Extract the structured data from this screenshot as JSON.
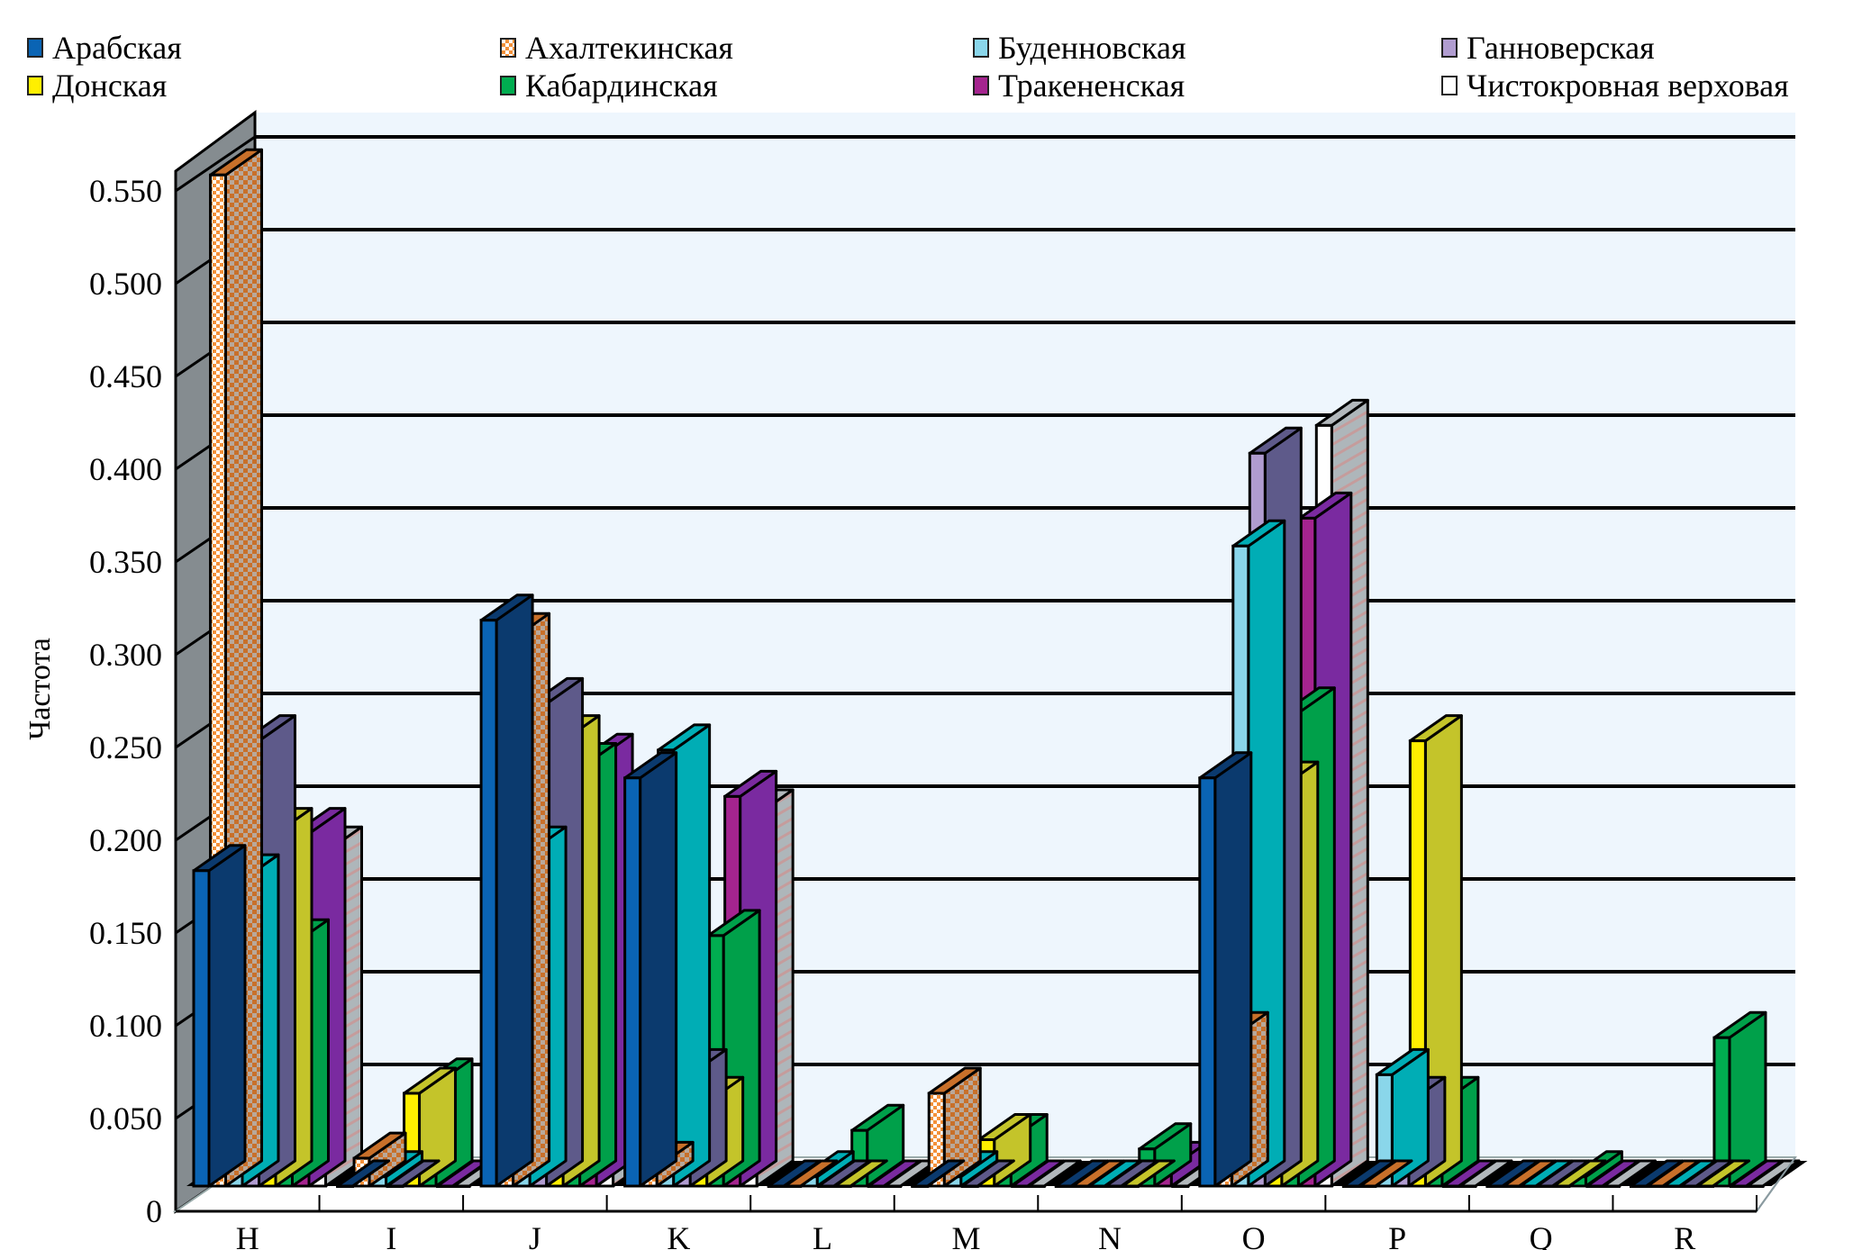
{
  "chart_data": {
    "type": "bar",
    "style": "3d-grouped",
    "title": "",
    "xlabel": "",
    "ylabel": "Частота",
    "ylim": [
      0,
      0.55
    ],
    "yticks": [
      "0",
      "0.050",
      "0.100",
      "0.150",
      "0.200",
      "0.250",
      "0.300",
      "0.350",
      "0.400",
      "0.450",
      "0.500",
      "0.550"
    ],
    "ytick_values": [
      0,
      0.05,
      0.1,
      0.15,
      0.2,
      0.25,
      0.3,
      0.35,
      0.4,
      0.45,
      0.5,
      0.55
    ],
    "grid": true,
    "legend_position": "top",
    "categories": [
      "H",
      "I",
      "J",
      "K",
      "L",
      "M",
      "N",
      "O",
      "P",
      "Q",
      "R"
    ],
    "series": [
      {
        "name": "Арабская",
        "color": "#0a64b4",
        "side": "#0b3a6e",
        "pattern": "solid",
        "values": [
          0.17,
          0.0,
          0.305,
          0.22,
          0.0,
          0.0,
          0.0,
          0.22,
          0.0,
          0.0,
          0.0
        ]
      },
      {
        "name": "Ахалтекинская",
        "color": "#f4913a",
        "side": "#c8702a",
        "pattern": "checker",
        "values": [
          0.545,
          0.015,
          0.295,
          0.01,
          0.0,
          0.05,
          0.0,
          0.08,
          0.0,
          0.0,
          0.0
        ]
      },
      {
        "name": "Буденновская",
        "color": "#8ad6ea",
        "side": "#00adb5",
        "pattern": "solid",
        "values": [
          0.165,
          0.005,
          0.18,
          0.235,
          0.005,
          0.005,
          0.0,
          0.345,
          0.06,
          0.0,
          0.0
        ]
      },
      {
        "name": "Ганноверская",
        "color": "#b09cd0",
        "side": "#5e5a8a",
        "pattern": "solid",
        "values": [
          0.24,
          0.0,
          0.26,
          0.06,
          0.0,
          0.0,
          0.0,
          0.395,
          0.045,
          0.0,
          0.0
        ]
      },
      {
        "name": "Донская",
        "color": "#ffef00",
        "side": "#c4c42a",
        "pattern": "solid",
        "values": [
          0.19,
          0.05,
          0.24,
          0.045,
          0.0,
          0.025,
          0.0,
          0.215,
          0.24,
          0.0,
          0.0
        ]
      },
      {
        "name": "Кабардинская",
        "color": "#00ad50",
        "side": "#00a04a",
        "pattern": "solid",
        "values": [
          0.13,
          0.055,
          0.225,
          0.135,
          0.03,
          0.025,
          0.02,
          0.255,
          0.045,
          0.005,
          0.08
        ]
      },
      {
        "name": "Тракененская",
        "color": "#a5248f",
        "side": "#7a2aa0",
        "pattern": "solid",
        "values": [
          0.19,
          0.0,
          0.23,
          0.21,
          0.0,
          0.0,
          0.01,
          0.36,
          0.0,
          0.0,
          0.0
        ]
      },
      {
        "name": "Чистокровная верховая",
        "color": "#ffffff",
        "side": "#b2b8bc",
        "pattern": "hatch",
        "values": [
          0.18,
          0.0,
          0.205,
          0.2,
          0.0,
          0.0,
          0.0,
          0.41,
          0.0,
          0.0,
          0.0
        ]
      }
    ]
  }
}
